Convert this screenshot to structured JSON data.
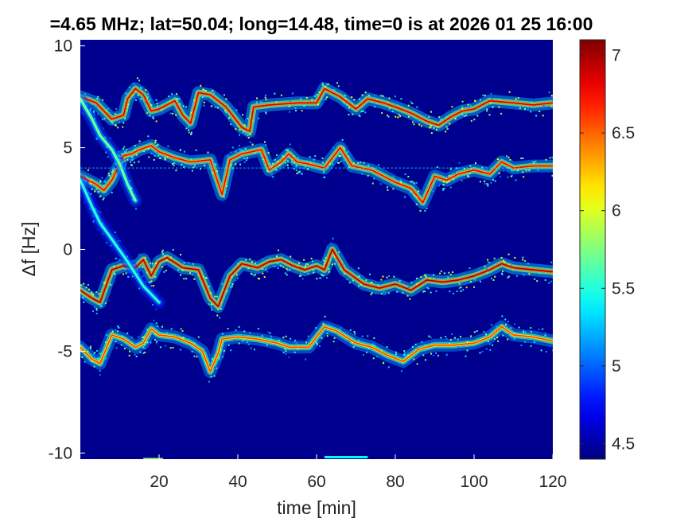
{
  "chart_data": {
    "type": "heatmap",
    "title": "=4.65 MHz;  lat=50.04; long=14.48, time=0 is at 2026 01 25 16:00",
    "xlabel": "time [min]",
    "ylabel": "Δf [Hz]",
    "xlim": [
      0,
      120
    ],
    "ylim": [
      -10.3,
      10.3
    ],
    "xticks": [
      20,
      40,
      60,
      80,
      100,
      120
    ],
    "yticks": [
      10,
      5,
      0,
      -5,
      -10
    ],
    "ytick_labels": [
      "10",
      "5",
      "0",
      "-5",
      "-10"
    ],
    "colorbar": {
      "clim": [
        4.4,
        7.1
      ],
      "ticks": [
        7,
        6.5,
        6,
        5.5,
        5,
        4.5
      ],
      "tick_labels": [
        "7",
        "6.5",
        "6",
        "5.5",
        "5",
        "4.5"
      ],
      "colormap": "jet"
    },
    "background_level": 4.4,
    "traces": [
      {
        "name": "",
        "points": [
          [
            0,
            7.5
          ],
          [
            4,
            7.2
          ],
          [
            8,
            6.4
          ],
          [
            11,
            6.6
          ],
          [
            12,
            7.4
          ],
          [
            14,
            7.9
          ],
          [
            16,
            7.6
          ],
          [
            18,
            6.8
          ],
          [
            20,
            6.9
          ],
          [
            24,
            7.3
          ],
          [
            26,
            6.6
          ],
          [
            28,
            6.2
          ],
          [
            30,
            7.7
          ],
          [
            33,
            7.6
          ],
          [
            37,
            7.0
          ],
          [
            41,
            6.0
          ],
          [
            43,
            5.8
          ],
          [
            44,
            7.0
          ],
          [
            48,
            7.1
          ],
          [
            55,
            7.2
          ],
          [
            60,
            7.2
          ],
          [
            62,
            7.9
          ],
          [
            66,
            7.5
          ],
          [
            70,
            6.9
          ],
          [
            73,
            7.4
          ],
          [
            77,
            7.2
          ],
          [
            80,
            7.0
          ],
          [
            84,
            6.7
          ],
          [
            88,
            6.3
          ],
          [
            91,
            6.1
          ],
          [
            94,
            6.5
          ],
          [
            97,
            6.8
          ],
          [
            100,
            6.9
          ],
          [
            104,
            7.3
          ],
          [
            110,
            7.2
          ],
          [
            115,
            7.1
          ],
          [
            120,
            7.2
          ]
        ],
        "peak": 6.9
      },
      {
        "name": "",
        "points": [
          [
            0,
            3.6
          ],
          [
            4,
            3.2
          ],
          [
            6,
            2.9
          ],
          [
            8,
            3.4
          ],
          [
            11,
            4.6
          ],
          [
            13,
            4.7
          ],
          [
            15,
            4.9
          ],
          [
            18,
            5.1
          ],
          [
            20,
            4.8
          ],
          [
            24,
            4.5
          ],
          [
            28,
            4.3
          ],
          [
            33,
            4.4
          ],
          [
            36,
            2.7
          ],
          [
            38,
            4.4
          ],
          [
            41,
            4.7
          ],
          [
            46,
            4.9
          ],
          [
            48,
            3.9
          ],
          [
            51,
            4.3
          ],
          [
            53,
            4.7
          ],
          [
            55,
            4.3
          ],
          [
            58,
            4.2
          ],
          [
            62,
            4.0
          ],
          [
            66,
            5.0
          ],
          [
            69,
            4.1
          ],
          [
            74,
            3.9
          ],
          [
            80,
            3.3
          ],
          [
            84,
            3.0
          ],
          [
            87,
            2.3
          ],
          [
            90,
            3.6
          ],
          [
            93,
            3.4
          ],
          [
            96,
            3.7
          ],
          [
            100,
            3.9
          ],
          [
            104,
            3.7
          ],
          [
            107,
            4.3
          ],
          [
            110,
            4.0
          ],
          [
            115,
            4.1
          ],
          [
            120,
            4.1
          ]
        ],
        "peak": 6.8
      },
      {
        "name": "",
        "points": [
          [
            0,
            -2.0
          ],
          [
            3,
            -2.4
          ],
          [
            5,
            -2.6
          ],
          [
            8,
            -1.0
          ],
          [
            11,
            -0.8
          ],
          [
            14,
            -0.9
          ],
          [
            16,
            -0.5
          ],
          [
            18,
            -1.3
          ],
          [
            20,
            -0.6
          ],
          [
            22,
            -0.4
          ],
          [
            26,
            -0.9
          ],
          [
            30,
            -1.0
          ],
          [
            33,
            -2.4
          ],
          [
            35,
            -2.8
          ],
          [
            38,
            -1.3
          ],
          [
            41,
            -0.7
          ],
          [
            45,
            -0.9
          ],
          [
            48,
            -0.6
          ],
          [
            51,
            -0.5
          ],
          [
            54,
            -0.8
          ],
          [
            57,
            -1.0
          ],
          [
            60,
            -0.8
          ],
          [
            62,
            -1.0
          ],
          [
            64,
            0.0
          ],
          [
            67,
            -1.0
          ],
          [
            72,
            -1.7
          ],
          [
            76,
            -1.9
          ],
          [
            80,
            -1.7
          ],
          [
            84,
            -2.0
          ],
          [
            88,
            -1.5
          ],
          [
            92,
            -1.6
          ],
          [
            96,
            -1.5
          ],
          [
            100,
            -1.3
          ],
          [
            104,
            -1.0
          ],
          [
            107,
            -0.7
          ],
          [
            110,
            -0.9
          ],
          [
            115,
            -1.0
          ],
          [
            120,
            -1.1
          ]
        ],
        "peak": 7.0
      },
      {
        "name": "",
        "points": [
          [
            0,
            -4.8
          ],
          [
            3,
            -5.4
          ],
          [
            5,
            -5.6
          ],
          [
            8,
            -4.2
          ],
          [
            11,
            -4.4
          ],
          [
            14,
            -4.8
          ],
          [
            16,
            -4.6
          ],
          [
            18,
            -3.9
          ],
          [
            20,
            -4.2
          ],
          [
            24,
            -4.3
          ],
          [
            28,
            -4.6
          ],
          [
            31,
            -5.0
          ],
          [
            33,
            -6.0
          ],
          [
            35,
            -5.1
          ],
          [
            36,
            -4.4
          ],
          [
            40,
            -4.3
          ],
          [
            45,
            -4.4
          ],
          [
            50,
            -4.6
          ],
          [
            53,
            -4.8
          ],
          [
            58,
            -4.8
          ],
          [
            62,
            -3.8
          ],
          [
            65,
            -4.0
          ],
          [
            70,
            -4.6
          ],
          [
            74,
            -4.8
          ],
          [
            78,
            -5.2
          ],
          [
            82,
            -5.5
          ],
          [
            86,
            -4.9
          ],
          [
            90,
            -4.7
          ],
          [
            95,
            -4.7
          ],
          [
            100,
            -4.6
          ],
          [
            104,
            -4.3
          ],
          [
            107,
            -3.8
          ],
          [
            110,
            -4.2
          ],
          [
            115,
            -4.3
          ],
          [
            120,
            -4.5
          ]
        ],
        "peak": 6.6
      },
      {
        "name": "",
        "points": [
          [
            0,
            7.4
          ],
          [
            3,
            6.4
          ],
          [
            5,
            5.6
          ],
          [
            8,
            4.9
          ],
          [
            10,
            4.2
          ],
          [
            12,
            3.2
          ],
          [
            14,
            2.4
          ]
        ],
        "peak": 5.8
      },
      {
        "name": "",
        "points": [
          [
            0,
            3.4
          ],
          [
            3,
            2.1
          ],
          [
            5,
            1.3
          ],
          [
            8,
            0.5
          ],
          [
            12,
            -0.6
          ],
          [
            16,
            -1.8
          ],
          [
            20,
            -2.6
          ]
        ],
        "peak": 5.6
      }
    ],
    "horizontal_line": {
      "y": 4.0,
      "level": 5.3
    },
    "bottom_blips": [
      {
        "x": [
          16,
          21
        ],
        "y": -10.3,
        "level": 5.8
      },
      {
        "x": [
          62,
          73
        ],
        "y": -10.2,
        "level": 5.4
      }
    ]
  }
}
